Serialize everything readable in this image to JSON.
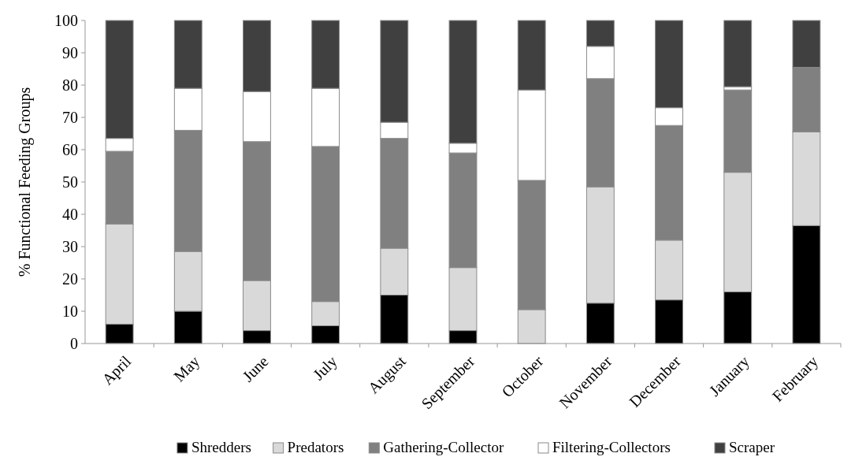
{
  "chart_data": {
    "type": "bar",
    "stacked": true,
    "ylabel": "% Functional Feeding Groups",
    "categories": [
      "April",
      "May",
      "June",
      "July",
      "August",
      "September",
      "October",
      "November",
      "December",
      "January",
      "February"
    ],
    "series": [
      {
        "name": "Shredders",
        "color": "#000000",
        "values": [
          6,
          10,
          4,
          5.5,
          15,
          4,
          0,
          12.5,
          13.5,
          16,
          36.5
        ]
      },
      {
        "name": "Predators",
        "color": "#d9d9d9",
        "values": [
          31,
          18.5,
          15.5,
          7.5,
          14.5,
          19.5,
          10.5,
          36,
          18.5,
          37,
          29
        ]
      },
      {
        "name": "Gathering-Collector",
        "color": "#808080",
        "values": [
          22.5,
          37.5,
          43,
          48,
          34,
          35.5,
          40,
          33.5,
          35.5,
          25.5,
          20
        ]
      },
      {
        "name": "Filtering-Collectors",
        "color": "#ffffff",
        "values": [
          4,
          13,
          15.5,
          18,
          5,
          3,
          28,
          10,
          5.5,
          1,
          0
        ]
      },
      {
        "name": "Scraper",
        "color": "#404040",
        "values": [
          36.5,
          21,
          22,
          21,
          31.5,
          38,
          21.5,
          8,
          27,
          20.5,
          14.5
        ]
      }
    ],
    "ylim": [
      0,
      100
    ],
    "yticks": [
      0,
      10,
      20,
      30,
      40,
      50,
      60,
      70,
      80,
      90,
      100
    ],
    "grid": false,
    "legend": "bottom"
  }
}
